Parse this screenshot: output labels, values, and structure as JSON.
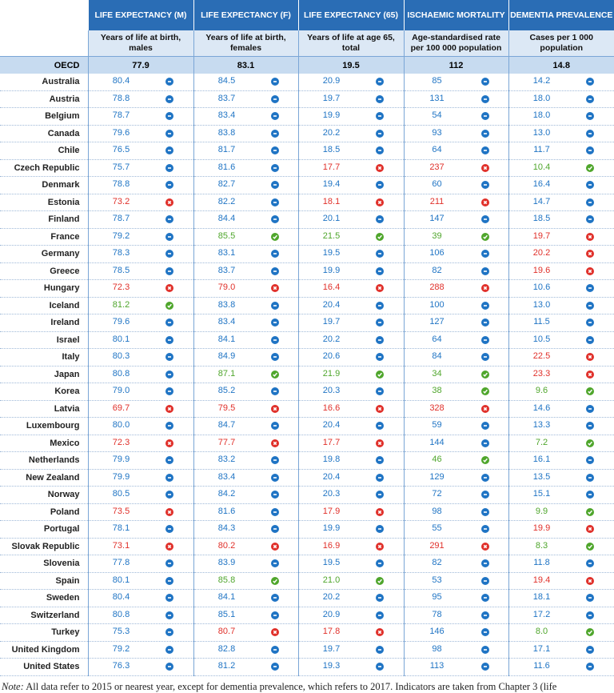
{
  "table": {
    "header": [
      {
        "title": "LIFE EXPECTANCY (M)",
        "subtitle": "Years of life at birth, males"
      },
      {
        "title": "LIFE EXPECTANCY (F)",
        "subtitle": "Years of life at birth, females"
      },
      {
        "title": "LIFE EXPECTANCY (65)",
        "subtitle": "Years of life at age 65, total"
      },
      {
        "title": "ISCHAEMIC MORTALITY",
        "subtitle": "Age-standardised rate per 100 000 population"
      },
      {
        "title": "DEMENTIA PREVALENCE",
        "subtitle": "Cases per 1 000 population"
      }
    ],
    "oecd": {
      "label": "OECD",
      "values": [
        "77.9",
        "83.1",
        "19.5",
        "112",
        "14.8"
      ]
    },
    "rows": [
      {
        "country": "Australia",
        "cells": [
          [
            "80.4",
            "average"
          ],
          [
            "84.5",
            "average"
          ],
          [
            "20.9",
            "average"
          ],
          [
            "85",
            "average"
          ],
          [
            "14.2",
            "average"
          ]
        ]
      },
      {
        "country": "Austria",
        "cells": [
          [
            "78.8",
            "average"
          ],
          [
            "83.7",
            "average"
          ],
          [
            "19.7",
            "average"
          ],
          [
            "131",
            "average"
          ],
          [
            "18.0",
            "average"
          ]
        ]
      },
      {
        "country": "Belgium",
        "cells": [
          [
            "78.7",
            "average"
          ],
          [
            "83.4",
            "average"
          ],
          [
            "19.9",
            "average"
          ],
          [
            "54",
            "average"
          ],
          [
            "18.0",
            "average"
          ]
        ]
      },
      {
        "country": "Canada",
        "cells": [
          [
            "79.6",
            "average"
          ],
          [
            "83.8",
            "average"
          ],
          [
            "20.2",
            "average"
          ],
          [
            "93",
            "average"
          ],
          [
            "13.0",
            "average"
          ]
        ]
      },
      {
        "country": "Chile",
        "cells": [
          [
            "76.5",
            "average"
          ],
          [
            "81.7",
            "average"
          ],
          [
            "18.5",
            "average"
          ],
          [
            "64",
            "average"
          ],
          [
            "11.7",
            "average"
          ]
        ]
      },
      {
        "country": "Czech Republic",
        "cells": [
          [
            "75.7",
            "average"
          ],
          [
            "81.6",
            "average"
          ],
          [
            "17.7",
            "worse"
          ],
          [
            "237",
            "worse"
          ],
          [
            "10.4",
            "better"
          ]
        ]
      },
      {
        "country": "Denmark",
        "cells": [
          [
            "78.8",
            "average"
          ],
          [
            "82.7",
            "average"
          ],
          [
            "19.4",
            "average"
          ],
          [
            "60",
            "average"
          ],
          [
            "16.4",
            "average"
          ]
        ]
      },
      {
        "country": "Estonia",
        "cells": [
          [
            "73.2",
            "worse"
          ],
          [
            "82.2",
            "average"
          ],
          [
            "18.1",
            "worse"
          ],
          [
            "211",
            "worse"
          ],
          [
            "14.7",
            "average"
          ]
        ]
      },
      {
        "country": "Finland",
        "cells": [
          [
            "78.7",
            "average"
          ],
          [
            "84.4",
            "average"
          ],
          [
            "20.1",
            "average"
          ],
          [
            "147",
            "average"
          ],
          [
            "18.5",
            "average"
          ]
        ]
      },
      {
        "country": "France",
        "cells": [
          [
            "79.2",
            "average"
          ],
          [
            "85.5",
            "better"
          ],
          [
            "21.5",
            "better"
          ],
          [
            "39",
            "better"
          ],
          [
            "19.7",
            "worse"
          ]
        ]
      },
      {
        "country": "Germany",
        "cells": [
          [
            "78.3",
            "average"
          ],
          [
            "83.1",
            "average"
          ],
          [
            "19.5",
            "average"
          ],
          [
            "106",
            "average"
          ],
          [
            "20.2",
            "worse"
          ]
        ]
      },
      {
        "country": "Greece",
        "cells": [
          [
            "78.5",
            "average"
          ],
          [
            "83.7",
            "average"
          ],
          [
            "19.9",
            "average"
          ],
          [
            "82",
            "average"
          ],
          [
            "19.6",
            "worse"
          ]
        ]
      },
      {
        "country": "Hungary",
        "cells": [
          [
            "72.3",
            "worse"
          ],
          [
            "79.0",
            "worse"
          ],
          [
            "16.4",
            "worse"
          ],
          [
            "288",
            "worse"
          ],
          [
            "10.6",
            "average"
          ]
        ]
      },
      {
        "country": "Iceland",
        "cells": [
          [
            "81.2",
            "better"
          ],
          [
            "83.8",
            "average"
          ],
          [
            "20.4",
            "average"
          ],
          [
            "100",
            "average"
          ],
          [
            "13.0",
            "average"
          ]
        ]
      },
      {
        "country": "Ireland",
        "cells": [
          [
            "79.6",
            "average"
          ],
          [
            "83.4",
            "average"
          ],
          [
            "19.7",
            "average"
          ],
          [
            "127",
            "average"
          ],
          [
            "11.5",
            "average"
          ]
        ]
      },
      {
        "country": "Israel",
        "cells": [
          [
            "80.1",
            "average"
          ],
          [
            "84.1",
            "average"
          ],
          [
            "20.2",
            "average"
          ],
          [
            "64",
            "average"
          ],
          [
            "10.5",
            "average"
          ]
        ]
      },
      {
        "country": "Italy",
        "cells": [
          [
            "80.3",
            "average"
          ],
          [
            "84.9",
            "average"
          ],
          [
            "20.6",
            "average"
          ],
          [
            "84",
            "average"
          ],
          [
            "22.5",
            "worse"
          ]
        ]
      },
      {
        "country": "Japan",
        "cells": [
          [
            "80.8",
            "average"
          ],
          [
            "87.1",
            "better"
          ],
          [
            "21.9",
            "better"
          ],
          [
            "34",
            "better"
          ],
          [
            "23.3",
            "worse"
          ]
        ]
      },
      {
        "country": "Korea",
        "cells": [
          [
            "79.0",
            "average"
          ],
          [
            "85.2",
            "average"
          ],
          [
            "20.3",
            "average"
          ],
          [
            "38",
            "better"
          ],
          [
            "9.6",
            "better"
          ]
        ]
      },
      {
        "country": "Latvia",
        "cells": [
          [
            "69.7",
            "worse"
          ],
          [
            "79.5",
            "worse"
          ],
          [
            "16.6",
            "worse"
          ],
          [
            "328",
            "worse"
          ],
          [
            "14.6",
            "average"
          ]
        ]
      },
      {
        "country": "Luxembourg",
        "cells": [
          [
            "80.0",
            "average"
          ],
          [
            "84.7",
            "average"
          ],
          [
            "20.4",
            "average"
          ],
          [
            "59",
            "average"
          ],
          [
            "13.3",
            "average"
          ]
        ]
      },
      {
        "country": "Mexico",
        "cells": [
          [
            "72.3",
            "worse"
          ],
          [
            "77.7",
            "worse"
          ],
          [
            "17.7",
            "worse"
          ],
          [
            "144",
            "average"
          ],
          [
            "7.2",
            "better"
          ]
        ]
      },
      {
        "country": "Netherlands",
        "cells": [
          [
            "79.9",
            "average"
          ],
          [
            "83.2",
            "average"
          ],
          [
            "19.8",
            "average"
          ],
          [
            "46",
            "better"
          ],
          [
            "16.1",
            "average"
          ]
        ]
      },
      {
        "country": "New Zealand",
        "cells": [
          [
            "79.9",
            "average"
          ],
          [
            "83.4",
            "average"
          ],
          [
            "20.4",
            "average"
          ],
          [
            "129",
            "average"
          ],
          [
            "13.5",
            "average"
          ]
        ]
      },
      {
        "country": "Norway",
        "cells": [
          [
            "80.5",
            "average"
          ],
          [
            "84.2",
            "average"
          ],
          [
            "20.3",
            "average"
          ],
          [
            "72",
            "average"
          ],
          [
            "15.1",
            "average"
          ]
        ]
      },
      {
        "country": "Poland",
        "cells": [
          [
            "73.5",
            "worse"
          ],
          [
            "81.6",
            "average"
          ],
          [
            "17.9",
            "worse"
          ],
          [
            "98",
            "average"
          ],
          [
            "9.9",
            "better"
          ]
        ]
      },
      {
        "country": "Portugal",
        "cells": [
          [
            "78.1",
            "average"
          ],
          [
            "84.3",
            "average"
          ],
          [
            "19.9",
            "average"
          ],
          [
            "55",
            "average"
          ],
          [
            "19.9",
            "worse"
          ]
        ]
      },
      {
        "country": "Slovak Republic",
        "cells": [
          [
            "73.1",
            "worse"
          ],
          [
            "80.2",
            "worse"
          ],
          [
            "16.9",
            "worse"
          ],
          [
            "291",
            "worse"
          ],
          [
            "8.3",
            "better"
          ]
        ]
      },
      {
        "country": "Slovenia",
        "cells": [
          [
            "77.8",
            "average"
          ],
          [
            "83.9",
            "average"
          ],
          [
            "19.5",
            "average"
          ],
          [
            "82",
            "average"
          ],
          [
            "11.8",
            "average"
          ]
        ]
      },
      {
        "country": "Spain",
        "cells": [
          [
            "80.1",
            "average"
          ],
          [
            "85.8",
            "better"
          ],
          [
            "21.0",
            "better"
          ],
          [
            "53",
            "average"
          ],
          [
            "19.4",
            "worse"
          ]
        ]
      },
      {
        "country": "Sweden",
        "cells": [
          [
            "80.4",
            "average"
          ],
          [
            "84.1",
            "average"
          ],
          [
            "20.2",
            "average"
          ],
          [
            "95",
            "average"
          ],
          [
            "18.1",
            "average"
          ]
        ]
      },
      {
        "country": "Switzerland",
        "cells": [
          [
            "80.8",
            "average"
          ],
          [
            "85.1",
            "average"
          ],
          [
            "20.9",
            "average"
          ],
          [
            "78",
            "average"
          ],
          [
            "17.2",
            "average"
          ]
        ]
      },
      {
        "country": "Turkey",
        "cells": [
          [
            "75.3",
            "average"
          ],
          [
            "80.7",
            "worse"
          ],
          [
            "17.8",
            "worse"
          ],
          [
            "146",
            "average"
          ],
          [
            "8.0",
            "better"
          ]
        ]
      },
      {
        "country": "United Kingdom",
        "cells": [
          [
            "79.2",
            "average"
          ],
          [
            "82.8",
            "average"
          ],
          [
            "19.7",
            "average"
          ],
          [
            "98",
            "average"
          ],
          [
            "17.1",
            "average"
          ]
        ]
      },
      {
        "country": "United States",
        "cells": [
          [
            "76.3",
            "average"
          ],
          [
            "81.2",
            "average"
          ],
          [
            "19.3",
            "average"
          ],
          [
            "113",
            "average"
          ],
          [
            "11.6",
            "average"
          ]
        ]
      }
    ]
  },
  "note": {
    "label": "Note:",
    "text": " All data refer to 2015 or nearest year, except for dementia prevalence, which refers to 2017. Indicators are taken from Chapter 3 (life"
  }
}
